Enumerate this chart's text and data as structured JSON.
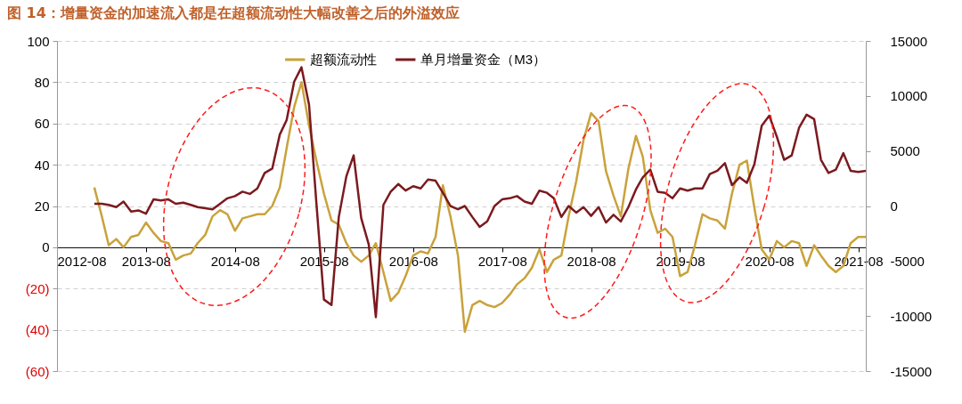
{
  "chart_data": {
    "type": "line",
    "title": "图 14：增量资金的加速流入都是在超额流动性大幅改善之后的外溢效应",
    "x": [
      "2013-01",
      "2013-02",
      "2013-03",
      "2013-04",
      "2013-05",
      "2013-06",
      "2013-07",
      "2013-08",
      "2013-09",
      "2013-10",
      "2013-11",
      "2013-12",
      "2014-01",
      "2014-02",
      "2014-03",
      "2014-04",
      "2014-05",
      "2014-06",
      "2014-07",
      "2014-08",
      "2014-09",
      "2014-10",
      "2014-11",
      "2014-12",
      "2015-01",
      "2015-02",
      "2015-03",
      "2015-04",
      "2015-05",
      "2015-06",
      "2015-07",
      "2015-08",
      "2015-09",
      "2015-10",
      "2015-11",
      "2015-12",
      "2016-01",
      "2016-02",
      "2016-03",
      "2016-04",
      "2016-05",
      "2016-06",
      "2016-07",
      "2016-08",
      "2016-09",
      "2016-10",
      "2016-11",
      "2016-12",
      "2017-01",
      "2017-02",
      "2017-03",
      "2017-04",
      "2017-05",
      "2017-06",
      "2017-07",
      "2017-08",
      "2017-09",
      "2017-10",
      "2017-11",
      "2017-12",
      "2018-01",
      "2018-02",
      "2018-03",
      "2018-04",
      "2018-05",
      "2018-06",
      "2018-07",
      "2018-08",
      "2018-09",
      "2018-10",
      "2018-11",
      "2018-12",
      "2019-01",
      "2019-02",
      "2019-03",
      "2019-04",
      "2019-05",
      "2019-06",
      "2019-07",
      "2019-08",
      "2019-09",
      "2019-10",
      "2019-11",
      "2019-12",
      "2020-01",
      "2020-02",
      "2020-03",
      "2020-04",
      "2020-05",
      "2020-06",
      "2020-07",
      "2020-08",
      "2020-09",
      "2020-10",
      "2020-11",
      "2020-12",
      "2021-01",
      "2021-02",
      "2021-03",
      "2021-04",
      "2021-05",
      "2021-06",
      "2021-07",
      "2021-08",
      "2021-09"
    ],
    "series": [
      {
        "name": "超额流动性",
        "color": "#c9a23c",
        "values": [
          29,
          15,
          1,
          4,
          0,
          5,
          6,
          12,
          7,
          3,
          2,
          -6,
          -4,
          -3,
          2,
          6,
          15,
          18,
          16,
          8,
          14,
          15,
          16,
          16,
          20,
          29,
          48,
          68,
          80,
          59,
          42,
          26,
          13,
          11,
          2,
          -4,
          -7,
          -4,
          2,
          -12,
          -26,
          -22,
          -14,
          -4,
          -2,
          -3,
          5,
          30,
          15,
          -4,
          -41,
          -28,
          -26,
          -28,
          -29,
          -27,
          -23,
          -18,
          -15,
          -10,
          -1,
          -12,
          -6,
          -4,
          15,
          32,
          52,
          65,
          61,
          37,
          25,
          15,
          38,
          54,
          44,
          18,
          7,
          9,
          5,
          -14,
          -12,
          1,
          16,
          14,
          13,
          9,
          26,
          40,
          42,
          19,
          -1,
          -6,
          3,
          0,
          3,
          2,
          -9,
          1,
          -4,
          -9,
          -12,
          -9,
          2,
          5,
          5
        ]
      },
      {
        "name": "单月增量资金（M3）",
        "color": "#7b1a1f",
        "axis": "y2",
        "values": [
          200,
          200,
          100,
          -100,
          400,
          -500,
          -400,
          -700,
          600,
          500,
          600,
          200,
          300,
          100,
          -100,
          -200,
          -300,
          200,
          700,
          900,
          1300,
          1100,
          1600,
          3000,
          3400,
          6500,
          7800,
          11300,
          12600,
          9200,
          300,
          -8500,
          -9000,
          -1000,
          2700,
          4600,
          -1100,
          -3500,
          -10100,
          100,
          1300,
          2000,
          1400,
          1800,
          1600,
          2400,
          2300,
          1200,
          0,
          -300,
          0,
          -1000,
          -1900,
          -1400,
          0,
          600,
          700,
          900,
          400,
          200,
          1400,
          1200,
          700,
          -1000,
          0,
          -600,
          -100,
          -900,
          -100,
          -1500,
          -800,
          -1400,
          -100,
          1500,
          2600,
          3300,
          1300,
          1200,
          700,
          1600,
          1400,
          1600,
          1600,
          2900,
          3200,
          3900,
          1900,
          2600,
          2100,
          3800,
          7300,
          8200,
          6300,
          4200,
          4600,
          7100,
          8300,
          7900,
          4200,
          3000,
          3300,
          4800,
          3200,
          3100,
          3200
        ]
      }
    ],
    "xlim": [
      "2012-08",
      "2021-09"
    ],
    "xticks": [
      "2012-08",
      "2013-08",
      "2014-08",
      "2015-08",
      "2016-08",
      "2017-08",
      "2018-08",
      "2019-08",
      "2020-08",
      "2021-08"
    ],
    "ylim": [
      -60,
      100
    ],
    "yticks": [
      100,
      80,
      60,
      40,
      20,
      0,
      {
        "value": -20,
        "label": "(20)"
      },
      {
        "value": -40,
        "label": "(40)"
      },
      {
        "value": -60,
        "label": "(60)"
      }
    ],
    "y2lim": [
      -15000,
      15000
    ],
    "y2ticks": [
      15000,
      10000,
      5000,
      0,
      -5000,
      -10000,
      -15000
    ],
    "grid": "y",
    "legend": "top"
  }
}
